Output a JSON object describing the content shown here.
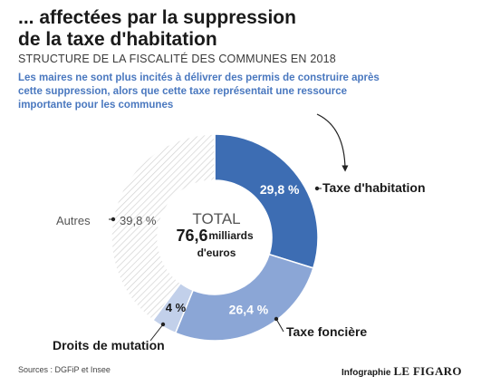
{
  "header": {
    "title_line1": "... affectées par la suppression",
    "title_line2": "de la taxe d'habitation",
    "subtitle": "STRUCTURE DE LA FISCALITÉ DES COMMUNES EN 2018",
    "intro": "Les maires ne sont plus incités à délivrer des permis de construire après cette suppression, alors que cette taxe représentait une ressource importante pour les communes"
  },
  "chart_data": {
    "type": "pie",
    "variant": "donut",
    "center": {
      "label": "TOTAL",
      "value": "76,6",
      "unit_line1": "milliards",
      "unit_line2": "d'euros"
    },
    "slices": [
      {
        "name": "Taxe d'habitation",
        "value": 29.8,
        "label": "29,8 %",
        "color": "#3d6db3"
      },
      {
        "name": "Taxe foncière",
        "value": 26.4,
        "label": "26,4 %",
        "color": "#8ba6d6"
      },
      {
        "name": "Droits de mutation",
        "value": 4,
        "label": "4 %",
        "color": "#c2d0ea"
      },
      {
        "name": "Autres",
        "value": 39.8,
        "label": "39,8 %",
        "color": "hatched"
      }
    ]
  },
  "footer": {
    "source": "Sources : DGFiP et Insee",
    "credit": "Infographie",
    "brand": "LE FIGARO"
  }
}
